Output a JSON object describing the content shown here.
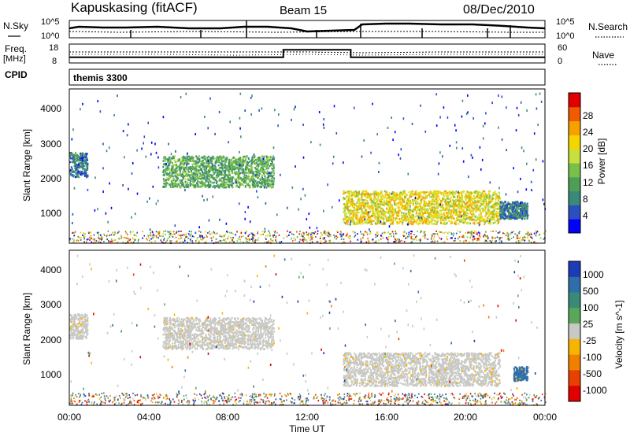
{
  "header": {
    "station": "Kapuskasing (fitACF)",
    "beam": "Beam 15",
    "date": "08/Dec/2010"
  },
  "strip_labels": {
    "nsky": "N.Sky",
    "nsky_ticks": [
      "10^5",
      "10^0"
    ],
    "nsearch": "N.Search",
    "nsearch_ticks": [
      "10^5",
      "10^0"
    ],
    "freq": "Freq.",
    "freq_unit": "[MHz]",
    "freq_ticks": [
      "18",
      "8"
    ],
    "nave": "Nave",
    "nave_ticks": [
      "60",
      "0"
    ],
    "cpid": "CPID",
    "cpid_value": "themis 3300"
  },
  "axes": {
    "ylabel": "Slant Range [km]",
    "yticks": [
      "1000",
      "2000",
      "3000",
      "4000"
    ],
    "xlabel": "Time UT",
    "xticks": [
      "00:00",
      "04:00",
      "08:00",
      "12:00",
      "16:00",
      "20:00",
      "00:00"
    ]
  },
  "colorbars": {
    "power": {
      "label": "Power [dB]",
      "ticks": [
        "4",
        "8",
        "12",
        "16",
        "20",
        "24",
        "28"
      ],
      "colors": [
        "#0000ff",
        "#2a4fbf",
        "#3a8a7a",
        "#4e9e58",
        "#79c04a",
        "#c8e03c",
        "#f5d400",
        "#f7a000",
        "#f05a00",
        "#e00000"
      ]
    },
    "velocity": {
      "label": "Velocity [m s^-1]",
      "ticks": [
        "1000",
        "500",
        "100",
        "25",
        "-25",
        "-100",
        "-500",
        "-1000"
      ],
      "colors": [
        "#1c3cb5",
        "#2f6ea8",
        "#3a8a7a",
        "#59a85a",
        "#c8c8c4",
        "#f7b400",
        "#f08000",
        "#e84000",
        "#e00000"
      ]
    }
  },
  "chart_data": {
    "type": "heatmap",
    "x_units": "hours UT",
    "y_units": "km",
    "xlim": [
      0,
      24
    ],
    "ylim": [
      180,
      4600
    ],
    "power_regions": [
      {
        "name": "early patch",
        "t": [
          0.0,
          0.9
        ],
        "r": [
          2100,
          2800
        ],
        "power_db": 6
      },
      {
        "name": "morning band",
        "t": [
          4.7,
          10.3
        ],
        "r": [
          1800,
          2700
        ],
        "power_db": 10
      },
      {
        "name": "post-noon band",
        "t": [
          13.8,
          21.7
        ],
        "r": [
          750,
          1700
        ],
        "power_db": 18
      },
      {
        "name": "late patch",
        "t": [
          21.7,
          23.1
        ],
        "r": [
          900,
          1400
        ],
        "power_db": 6
      }
    ],
    "velocity_regions": [
      {
        "name": "early patch",
        "t": [
          0.0,
          0.9
        ],
        "r": [
          2100,
          2800
        ],
        "velocity_ms": 0
      },
      {
        "name": "morning band",
        "t": [
          4.7,
          10.3
        ],
        "r": [
          1800,
          2700
        ],
        "velocity_ms": 0
      },
      {
        "name": "post-noon band",
        "t": [
          13.8,
          21.7
        ],
        "r": [
          750,
          1700
        ],
        "velocity_ms": 0
      },
      {
        "name": "late patch",
        "t": [
          22.4,
          23.1
        ],
        "r": [
          900,
          1300
        ],
        "velocity_ms": 150
      }
    ],
    "freq_mhz": [
      {
        "t": [
          0,
          10.8
        ],
        "value": 11
      },
      {
        "t": [
          10.8,
          14.2
        ],
        "value": 15
      },
      {
        "t": [
          14.2,
          24
        ],
        "value": 11
      }
    ]
  }
}
